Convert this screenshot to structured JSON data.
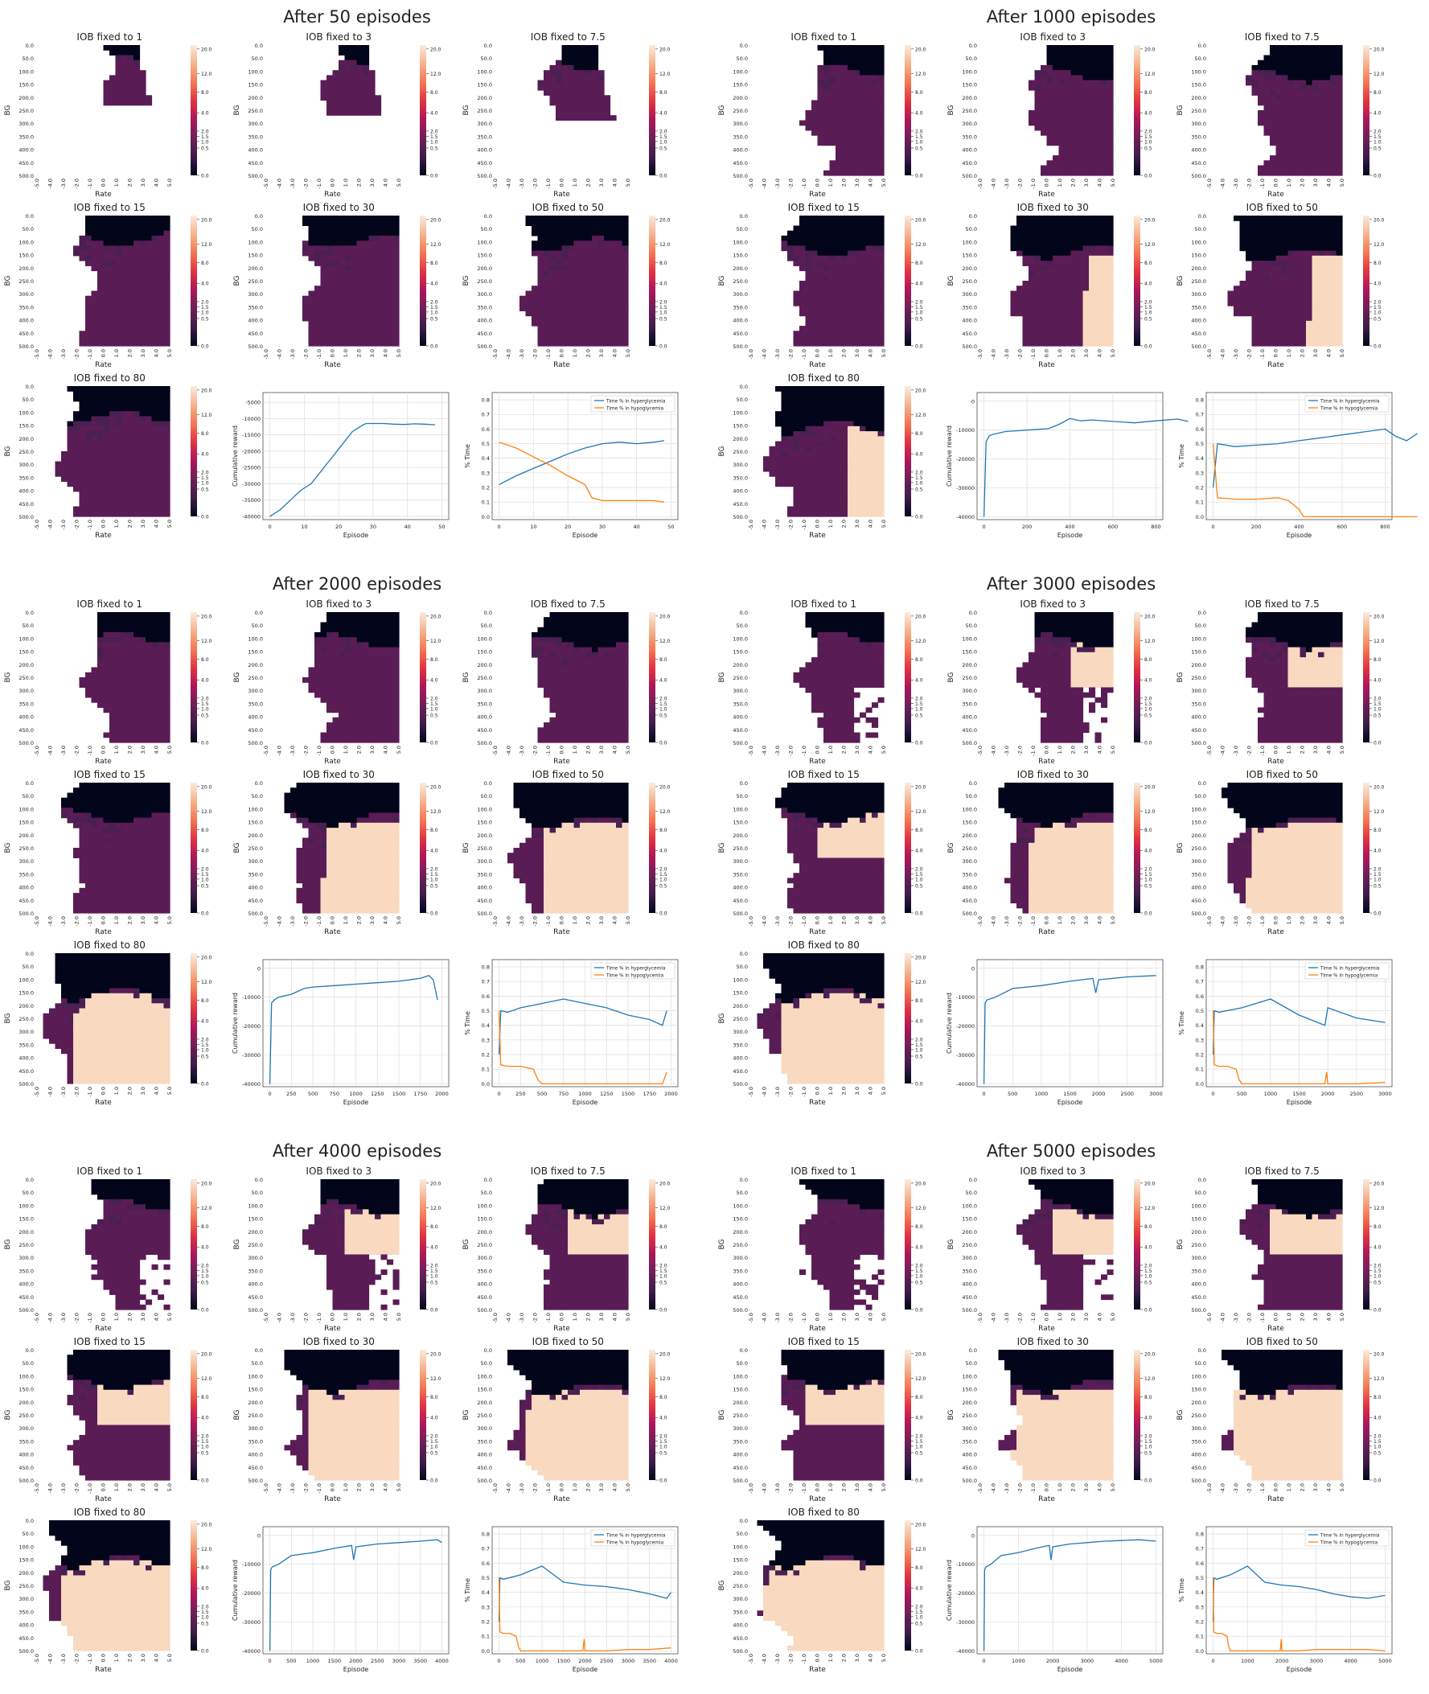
{
  "page": {
    "section_titles": [
      "After 50 episodes",
      "After 1000 episodes",
      "After 2000 episodes",
      "After 3000 episodes",
      "After 4000 episodes",
      "After 5000 episodes"
    ]
  },
  "chart_data": {
    "type": "heatmap",
    "episodes": [
      50,
      1000,
      2000,
      3000,
      4000,
      5000
    ],
    "heatmap_axes": {
      "xlabel": "Rate",
      "ylabel": "BG",
      "x_ticks": [
        "-5.0",
        "-4.0",
        "-3.0",
        "-2.0",
        "-1.0",
        "0.0",
        "1.0",
        "2.0",
        "3.0",
        "4.0",
        "5.0"
      ],
      "y_ticks": [
        "0.0",
        "50.0",
        "100.0",
        "150.0",
        "200.0",
        "250.0",
        "300.0",
        "350.0",
        "400.0",
        "450.0",
        "500.0"
      ]
    },
    "colorbar": {
      "ticks": [
        "20.0",
        "12.0",
        "8.0",
        "4.0",
        "2.0",
        "1.5",
        "1.0",
        "0.5",
        "0.0"
      ],
      "colors": [
        "#03051a",
        "#3b1d4a",
        "#701f57",
        "#ad1759",
        "#e13342",
        "#f37651",
        "#f6b48f",
        "#faebdd"
      ]
    },
    "panel_titles": [
      "IOB fixed to 1",
      "IOB fixed to 3",
      "IOB fixed to 7.5",
      "IOB fixed to 15",
      "IOB fixed to 30",
      "IOB fixed to 50",
      "IOB fixed to 80"
    ],
    "reward_chart": {
      "type": "line",
      "xlabel": "Episode",
      "ylabel": "Cumulative reward",
      "ylim": [
        -40000,
        0
      ],
      "y_ticks": [
        "0",
        "-10000",
        "-20000",
        "-30000",
        "-40000"
      ],
      "x_ticks_by_section": [
        [
          "0",
          "10",
          "20",
          "30",
          "40",
          "50"
        ],
        [
          "0",
          "200",
          "400",
          "600",
          "800"
        ],
        [
          "0",
          "250",
          "500",
          "750",
          "1000",
          "1250",
          "1500",
          "1750",
          "2000"
        ],
        [
          "0",
          "500",
          "1000",
          "1500",
          "2000",
          "2500",
          "3000"
        ],
        [
          "0",
          "500",
          "1000",
          "1500",
          "2000",
          "2500",
          "3000",
          "3500",
          "4000"
        ],
        [
          "0",
          "1000",
          "2000",
          "3000",
          "4000",
          "5000"
        ]
      ],
      "first_section_y_ticks": [
        "-5000",
        "-10000",
        "-15000",
        "-20000",
        "-25000",
        "-30000",
        "-35000",
        "-40000"
      ],
      "series_color": "#1f77b4"
    },
    "time_chart": {
      "type": "line",
      "xlabel": "Episode",
      "ylabel": "% Time",
      "ylim": [
        0,
        0.85
      ],
      "y_ticks": [
        "0.8",
        "0.7",
        "0.6",
        "0.5",
        "0.4",
        "0.3",
        "0.2",
        "0.1",
        "0.0"
      ],
      "series": [
        {
          "name": "Time % in hyperglycemia",
          "color": "#1f77b4"
        },
        {
          "name": "Time % in hypoglycemia",
          "color": "#ff7f0e"
        }
      ]
    },
    "reward_series": [
      {
        "x": [
          0,
          3,
          6,
          9,
          12,
          15,
          18,
          21,
          24,
          27,
          28,
          30,
          33,
          36,
          39,
          42,
          45,
          48
        ],
        "y": [
          -40000,
          -38000,
          -35000,
          -32000,
          -30000,
          -26000,
          -22000,
          -18000,
          -14000,
          -12000,
          -11500,
          -11500,
          -11500,
          -11700,
          -11800,
          -11600,
          -11700,
          -11900
        ]
      },
      {
        "x": [
          0,
          10,
          25,
          40,
          100,
          200,
          300,
          350,
          400,
          450,
          500,
          600,
          700,
          800,
          900,
          950
        ],
        "y": [
          -40000,
          -14000,
          -12000,
          -11500,
          -10500,
          -10000,
          -9500,
          -8000,
          -6000,
          -6800,
          -6500,
          -7000,
          -7500,
          -6800,
          -6200,
          -7000
        ]
      },
      {
        "x": [
          0,
          20,
          50,
          100,
          250,
          400,
          500,
          750,
          1000,
          1250,
          1500,
          1750,
          1850,
          1900,
          1950
        ],
        "y": [
          -40000,
          -12000,
          -11000,
          -10000,
          -9000,
          -7000,
          -6500,
          -6000,
          -5500,
          -5000,
          -4500,
          -3500,
          -2500,
          -4000,
          -11000
        ]
      },
      {
        "x": [
          0,
          20,
          50,
          200,
          500,
          1000,
          1500,
          1900,
          1950,
          2000,
          2500,
          3000
        ],
        "y": [
          -40000,
          -12000,
          -11000,
          -10000,
          -7000,
          -6000,
          -4500,
          -3500,
          -8500,
          -4000,
          -3000,
          -2500
        ]
      },
      {
        "x": [
          0,
          20,
          50,
          200,
          500,
          1000,
          1500,
          1900,
          1950,
          2000,
          2500,
          3000,
          3500,
          3900,
          4000
        ],
        "y": [
          -40000,
          -12000,
          -11000,
          -10000,
          -7000,
          -6000,
          -4500,
          -3500,
          -8500,
          -4000,
          -3000,
          -2500,
          -2000,
          -1500,
          -2500
        ]
      },
      {
        "x": [
          0,
          20,
          50,
          200,
          500,
          1000,
          1500,
          1900,
          1950,
          2000,
          2500,
          3000,
          3500,
          4000,
          4500,
          5000
        ],
        "y": [
          -40000,
          -12000,
          -11000,
          -10000,
          -7000,
          -6000,
          -4500,
          -3500,
          -8500,
          -4000,
          -3000,
          -2500,
          -2000,
          -1800,
          -1500,
          -2000
        ]
      }
    ],
    "hyper_series": [
      {
        "x": [
          0,
          5,
          10,
          15,
          20,
          25,
          30,
          35,
          40,
          45,
          48
        ],
        "y": [
          0.22,
          0.28,
          0.33,
          0.38,
          0.43,
          0.47,
          0.5,
          0.51,
          0.5,
          0.51,
          0.52
        ]
      },
      {
        "x": [
          0,
          20,
          100,
          200,
          300,
          400,
          500,
          600,
          700,
          800,
          850,
          900,
          950
        ],
        "y": [
          0.2,
          0.5,
          0.48,
          0.49,
          0.5,
          0.52,
          0.54,
          0.56,
          0.58,
          0.6,
          0.55,
          0.52,
          0.57
        ]
      },
      {
        "x": [
          0,
          20,
          100,
          250,
          500,
          750,
          1000,
          1250,
          1500,
          1750,
          1900,
          1950
        ],
        "y": [
          0.2,
          0.5,
          0.49,
          0.52,
          0.55,
          0.58,
          0.55,
          0.52,
          0.47,
          0.44,
          0.4,
          0.5
        ]
      },
      {
        "x": [
          0,
          20,
          100,
          500,
          1000,
          1500,
          1950,
          2000,
          2500,
          3000
        ],
        "y": [
          0.2,
          0.5,
          0.49,
          0.52,
          0.58,
          0.47,
          0.4,
          0.52,
          0.45,
          0.42
        ]
      },
      {
        "x": [
          0,
          20,
          100,
          500,
          1000,
          1500,
          2000,
          2500,
          3000,
          3500,
          3900,
          4000
        ],
        "y": [
          0.2,
          0.5,
          0.49,
          0.52,
          0.58,
          0.47,
          0.45,
          0.44,
          0.42,
          0.39,
          0.36,
          0.4
        ]
      },
      {
        "x": [
          0,
          20,
          100,
          500,
          1000,
          1500,
          2000,
          2500,
          3000,
          3500,
          4000,
          4500,
          5000
        ],
        "y": [
          0.2,
          0.5,
          0.49,
          0.52,
          0.58,
          0.47,
          0.45,
          0.44,
          0.42,
          0.39,
          0.37,
          0.36,
          0.38
        ]
      }
    ],
    "hypo_series": [
      {
        "x": [
          0,
          5,
          10,
          15,
          20,
          25,
          27,
          30,
          35,
          40,
          45,
          48
        ],
        "y": [
          0.51,
          0.47,
          0.41,
          0.35,
          0.28,
          0.22,
          0.13,
          0.11,
          0.11,
          0.11,
          0.11,
          0.1
        ]
      },
      {
        "x": [
          0,
          20,
          100,
          200,
          300,
          350,
          400,
          420,
          450,
          500,
          950
        ],
        "y": [
          0.5,
          0.13,
          0.12,
          0.12,
          0.13,
          0.11,
          0.05,
          0.0,
          0.0,
          0.0,
          0.0
        ]
      },
      {
        "x": [
          0,
          20,
          100,
          250,
          400,
          450,
          500,
          1000,
          1500,
          1900,
          1950
        ],
        "y": [
          0.5,
          0.13,
          0.12,
          0.12,
          0.1,
          0.03,
          0.0,
          0.0,
          0.0,
          0.0,
          0.08
        ]
      },
      {
        "x": [
          0,
          20,
          100,
          250,
          400,
          450,
          500,
          1500,
          1950,
          1980,
          2000,
          2500,
          3000
        ],
        "y": [
          0.5,
          0.13,
          0.12,
          0.12,
          0.1,
          0.03,
          0.0,
          0.0,
          0.0,
          0.08,
          0.0,
          0.0,
          0.01
        ]
      },
      {
        "x": [
          0,
          20,
          100,
          250,
          400,
          450,
          500,
          1500,
          1950,
          1980,
          2000,
          2500,
          3000,
          3500,
          4000
        ],
        "y": [
          0.5,
          0.13,
          0.12,
          0.12,
          0.1,
          0.03,
          0.0,
          0.0,
          0.0,
          0.08,
          0.0,
          0.0,
          0.01,
          0.01,
          0.02
        ]
      },
      {
        "x": [
          0,
          20,
          100,
          250,
          400,
          450,
          500,
          1500,
          1950,
          1980,
          2000,
          2500,
          3000,
          4000,
          4500,
          5000
        ],
        "y": [
          0.5,
          0.13,
          0.12,
          0.12,
          0.1,
          0.03,
          0.0,
          0.0,
          0.0,
          0.08,
          0.0,
          0.0,
          0.01,
          0.01,
          0.01,
          0.0
        ]
      }
    ]
  }
}
